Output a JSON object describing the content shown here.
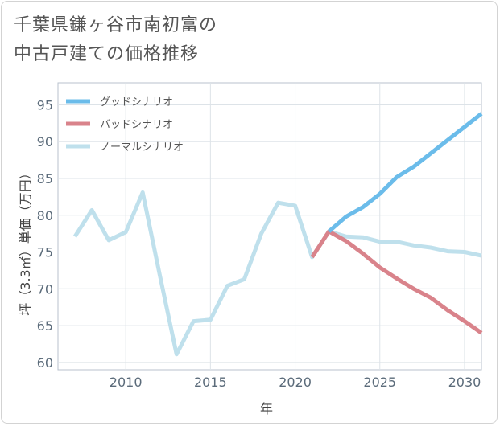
{
  "title": {
    "line1": "千葉県鎌ヶ谷市南初富の",
    "line2": "中古戸建ての価格推移"
  },
  "chart_data": {
    "type": "line",
    "title": "千葉県鎌ヶ谷市南初富の中古戸建ての価格推移",
    "xlabel": "年",
    "ylabel": "坪（3.3㎡）単価（万円）",
    "xlim": [
      2006,
      2031
    ],
    "ylim": [
      59,
      98
    ],
    "xticks": [
      2010,
      2015,
      2020,
      2025,
      2030
    ],
    "yticks": [
      60,
      65,
      70,
      75,
      80,
      85,
      90,
      95
    ],
    "grid": true,
    "legend_position": "top-left",
    "series": [
      {
        "name": "グッドシナリオ",
        "color": "#6bbcea",
        "x": [
          2022,
          2023,
          2024,
          2025,
          2026,
          2027,
          2028,
          2029,
          2030,
          2031
        ],
        "values": [
          77.8,
          79.8,
          81.1,
          82.9,
          85.2,
          86.6,
          88.4,
          90.2,
          92.0,
          93.8
        ]
      },
      {
        "name": "バッドシナリオ",
        "color": "#d9838b",
        "x": [
          2021,
          2022,
          2023,
          2024,
          2025,
          2026,
          2027,
          2028,
          2029,
          2030,
          2031
        ],
        "values": [
          74.3,
          77.8,
          76.5,
          74.8,
          72.9,
          71.4,
          70.0,
          68.8,
          67.1,
          65.6,
          64.0
        ]
      },
      {
        "name": "ノーマルシナリオ",
        "color": "#bfe0ec",
        "x": [
          2007,
          2008,
          2009,
          2010,
          2011,
          2012,
          2013,
          2014,
          2015,
          2016,
          2017,
          2018,
          2019,
          2020,
          2021,
          2022,
          2023,
          2024,
          2025,
          2026,
          2027,
          2028,
          2029,
          2030,
          2031
        ],
        "values": [
          77.1,
          80.7,
          76.6,
          77.7,
          83.1,
          72.0,
          61.1,
          65.6,
          65.8,
          70.4,
          71.3,
          77.5,
          81.7,
          81.3,
          74.3,
          77.8,
          77.1,
          77.0,
          76.4,
          76.4,
          75.9,
          75.6,
          75.1,
          75.0,
          74.5
        ]
      }
    ]
  }
}
